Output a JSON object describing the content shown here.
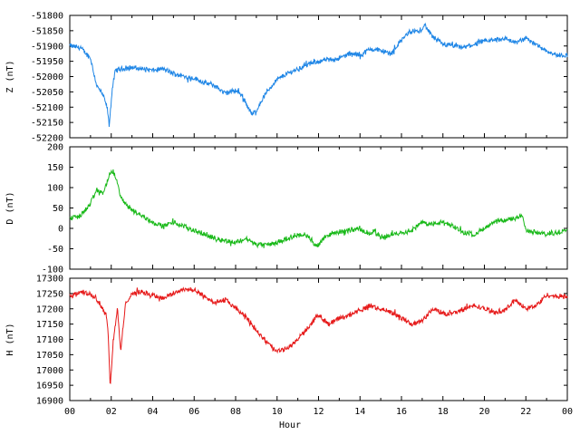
{
  "chart_data": [
    {
      "type": "line",
      "ylabel": "Z (nT)",
      "ylim": [
        -52200,
        -51800
      ],
      "yticks": [
        -51800,
        -51850,
        -51900,
        -51950,
        -52000,
        -52050,
        -52100,
        -52150,
        -52200
      ],
      "xlim": [
        0,
        24
      ],
      "color": "#1f86e6",
      "series": [
        {
          "x": [
            0,
            0.5,
            1,
            1.3,
            1.6,
            1.8,
            1.9,
            2.05,
            2.2,
            2.5,
            3,
            4,
            4.5,
            5,
            5.5,
            6,
            6.5,
            7,
            7.5,
            8,
            8.3,
            8.6,
            8.8,
            9,
            9.5,
            10,
            10.5,
            11,
            11.5,
            12,
            12.5,
            13,
            13.5,
            14,
            14.5,
            15,
            15.5,
            16,
            16.3,
            16.6,
            16.9,
            17.1,
            17.5,
            18,
            18.5,
            19,
            19.5,
            20,
            20.5,
            21,
            21.5,
            22,
            22.5,
            23,
            23.5,
            24
          ],
          "y": [
            -51900,
            -51905,
            -51940,
            -52030,
            -52060,
            -52100,
            -52160,
            -52040,
            -51980,
            -51975,
            -51970,
            -51980,
            -51975,
            -51990,
            -52000,
            -52005,
            -52020,
            -52030,
            -52055,
            -52045,
            -52060,
            -52100,
            -52125,
            -52110,
            -52050,
            -52010,
            -51990,
            -51975,
            -51960,
            -51950,
            -51945,
            -51940,
            -51925,
            -51930,
            -51910,
            -51915,
            -51925,
            -51880,
            -51860,
            -51850,
            -51855,
            -51830,
            -51870,
            -51895,
            -51900,
            -51905,
            -51895,
            -51885,
            -51880,
            -51875,
            -51890,
            -51875,
            -51895,
            -51915,
            -51930,
            -51930
          ]
        }
      ]
    },
    {
      "type": "line",
      "ylabel": "D (nT)",
      "ylim": [
        -100,
        200
      ],
      "yticks": [
        200,
        150,
        100,
        50,
        0,
        -50,
        -100
      ],
      "xlim": [
        0,
        24
      ],
      "color": "#19b919",
      "series": [
        {
          "x": [
            0,
            0.5,
            1,
            1.3,
            1.6,
            1.9,
            2.1,
            2.3,
            2.5,
            3,
            3.5,
            4,
            4.5,
            5,
            5.5,
            6,
            6.5,
            7,
            7.5,
            8,
            8.5,
            9,
            9.5,
            10,
            10.5,
            11,
            11.5,
            11.9,
            12.3,
            12.8,
            13.5,
            14,
            14.3,
            14.7,
            15,
            15.5,
            16,
            16.5,
            17,
            17.5,
            18,
            18.5,
            19,
            19.5,
            20,
            20.5,
            21,
            21.5,
            21.8,
            22,
            22.5,
            23,
            23.5,
            24
          ],
          "y": [
            25,
            30,
            60,
            95,
            85,
            130,
            140,
            110,
            70,
            45,
            30,
            15,
            5,
            15,
            5,
            -5,
            -15,
            -25,
            -30,
            -35,
            -25,
            -40,
            -40,
            -35,
            -25,
            -15,
            -20,
            -45,
            -20,
            -10,
            -5,
            0,
            -15,
            -5,
            -25,
            -15,
            -10,
            -5,
            15,
            10,
            15,
            5,
            -10,
            -15,
            0,
            15,
            20,
            25,
            35,
            -5,
            -10,
            -15,
            -10,
            0
          ]
        }
      ]
    },
    {
      "type": "line",
      "ylabel": "H (nT)",
      "ylim": [
        16900,
        17300
      ],
      "yticks": [
        17300,
        17250,
        17200,
        17150,
        17100,
        17050,
        17000,
        16950,
        16900
      ],
      "xlim": [
        0,
        24
      ],
      "color": "#e61919",
      "series": [
        {
          "x": [
            0,
            0.5,
            1,
            1.3,
            1.6,
            1.75,
            1.85,
            1.95,
            2.1,
            2.3,
            2.45,
            2.7,
            3,
            3.5,
            4,
            4.5,
            5,
            5.5,
            6,
            6.5,
            7,
            7.5,
            8,
            8.5,
            9,
            9.5,
            10,
            10.5,
            11,
            11.5,
            12,
            12.5,
            13,
            13.5,
            14,
            14.5,
            15,
            15.5,
            16,
            16.5,
            17,
            17.5,
            18,
            18.5,
            19,
            19.5,
            20,
            20.5,
            21,
            21.5,
            22,
            22.5,
            23,
            23.5,
            24
          ],
          "y": [
            17240,
            17255,
            17250,
            17230,
            17200,
            17180,
            17130,
            16940,
            17100,
            17200,
            17060,
            17220,
            17250,
            17255,
            17245,
            17235,
            17250,
            17265,
            17260,
            17240,
            17220,
            17230,
            17200,
            17175,
            17130,
            17090,
            17060,
            17070,
            17100,
            17140,
            17180,
            17150,
            17170,
            17180,
            17195,
            17210,
            17200,
            17190,
            17170,
            17150,
            17160,
            17200,
            17185,
            17185,
            17200,
            17210,
            17200,
            17190,
            17195,
            17230,
            17200,
            17210,
            17245,
            17240,
            17240
          ]
        }
      ]
    }
  ],
  "x_axis": {
    "label": "Hour",
    "ticks": [
      "00",
      "02",
      "04",
      "06",
      "08",
      "10",
      "12",
      "14",
      "16",
      "18",
      "20",
      "22",
      "00"
    ]
  }
}
